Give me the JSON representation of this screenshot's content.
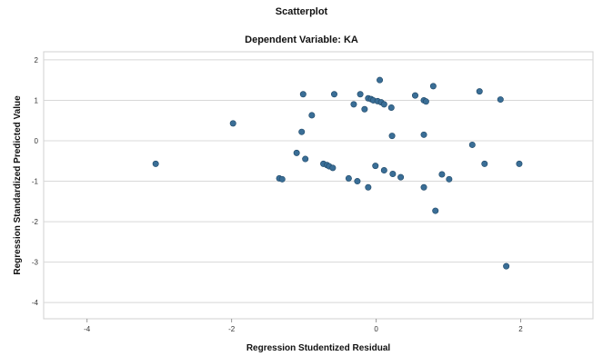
{
  "chart_data": {
    "type": "scatter",
    "title": "Scatterplot",
    "subtitle": "Dependent Variable: KA",
    "xlabel": "Regression Studentized Residual",
    "ylabel": "Regression Standardized Predicted Value",
    "xlim": [
      -4.6,
      3.0
    ],
    "ylim": [
      -4.4,
      2.2
    ],
    "xticks": [
      -4,
      -2,
      0,
      2
    ],
    "yticks": [
      2,
      1,
      0,
      -1,
      -2,
      -3,
      -4
    ],
    "grid": "horizontal",
    "point_color": "#3a6e96",
    "points": [
      {
        "x": -3.05,
        "y": -0.57
      },
      {
        "x": -1.98,
        "y": 0.43
      },
      {
        "x": -1.34,
        "y": -0.93
      },
      {
        "x": -1.3,
        "y": -0.95
      },
      {
        "x": -1.1,
        "y": -0.3
      },
      {
        "x": -1.03,
        "y": 0.22
      },
      {
        "x": -1.01,
        "y": 1.15
      },
      {
        "x": -0.98,
        "y": -0.45
      },
      {
        "x": -0.89,
        "y": 0.63
      },
      {
        "x": -0.73,
        "y": -0.57
      },
      {
        "x": -0.68,
        "y": -0.6
      },
      {
        "x": -0.65,
        "y": -0.63
      },
      {
        "x": -0.6,
        "y": -0.67
      },
      {
        "x": -0.58,
        "y": 1.15
      },
      {
        "x": -0.38,
        "y": -0.93
      },
      {
        "x": -0.31,
        "y": 0.9
      },
      {
        "x": -0.26,
        "y": -1.0
      },
      {
        "x": -0.22,
        "y": 1.15
      },
      {
        "x": -0.16,
        "y": 0.78
      },
      {
        "x": -0.11,
        "y": -1.15
      },
      {
        "x": -0.11,
        "y": 1.05
      },
      {
        "x": -0.07,
        "y": 1.03
      },
      {
        "x": -0.04,
        "y": 1.0
      },
      {
        "x": -0.01,
        "y": -0.62
      },
      {
        "x": 0.02,
        "y": 0.98
      },
      {
        "x": 0.05,
        "y": 1.5
      },
      {
        "x": 0.07,
        "y": 0.95
      },
      {
        "x": 0.11,
        "y": 0.9
      },
      {
        "x": 0.11,
        "y": -0.73
      },
      {
        "x": 0.21,
        "y": 0.82
      },
      {
        "x": 0.22,
        "y": 0.12
      },
      {
        "x": 0.23,
        "y": -0.82
      },
      {
        "x": 0.34,
        "y": -0.9
      },
      {
        "x": 0.54,
        "y": 1.12
      },
      {
        "x": 0.66,
        "y": 1.0
      },
      {
        "x": 0.66,
        "y": 0.15
      },
      {
        "x": 0.66,
        "y": -1.15
      },
      {
        "x": 0.69,
        "y": 0.97
      },
      {
        "x": 0.79,
        "y": 1.35
      },
      {
        "x": 0.82,
        "y": -1.73
      },
      {
        "x": 0.91,
        "y": -0.83
      },
      {
        "x": 1.01,
        "y": -0.95
      },
      {
        "x": 1.33,
        "y": -0.1
      },
      {
        "x": 1.43,
        "y": 1.22
      },
      {
        "x": 1.5,
        "y": -0.57
      },
      {
        "x": 1.72,
        "y": 1.02
      },
      {
        "x": 1.8,
        "y": -3.1
      },
      {
        "x": 1.98,
        "y": -0.57
      }
    ]
  }
}
